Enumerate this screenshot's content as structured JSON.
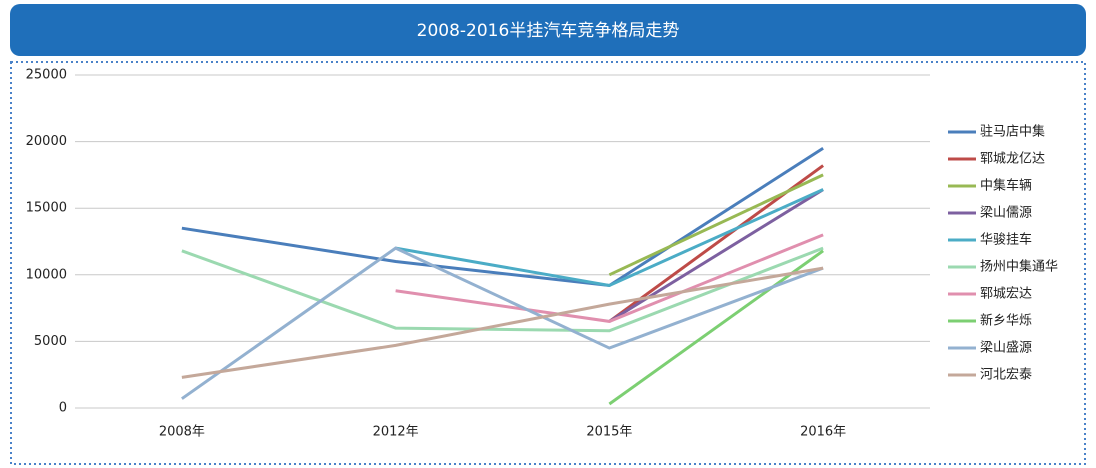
{
  "chart_data": {
    "type": "line",
    "title": "2008-2016半挂汽车竞争格局走势",
    "categories": [
      "2008年",
      "2012年",
      "2015年",
      "2016年"
    ],
    "ylim": [
      0,
      25000
    ],
    "yticks": [
      0,
      5000,
      10000,
      15000,
      20000,
      25000
    ],
    "grid": true,
    "series": [
      {
        "name": "驻马店中集",
        "color": "#4a7ebb",
        "values": [
          13500,
          11000,
          9200,
          19500
        ]
      },
      {
        "name": "郓城龙亿达",
        "color": "#be4b48",
        "values": [
          null,
          null,
          6500,
          18200
        ]
      },
      {
        "name": "中集车辆",
        "color": "#98b954",
        "values": [
          null,
          null,
          10000,
          17500
        ]
      },
      {
        "name": "梁山儒源",
        "color": "#7d60a0",
        "values": [
          null,
          null,
          6500,
          16400
        ]
      },
      {
        "name": "华骏挂车",
        "color": "#4bacc6",
        "values": [
          null,
          12000,
          9200,
          16400
        ]
      },
      {
        "name": "扬州中集通华",
        "color": "#9bd9b0",
        "values": [
          11800,
          6000,
          5800,
          12000
        ]
      },
      {
        "name": "郓城宏达",
        "color": "#e08fae",
        "values": [
          null,
          8800,
          6500,
          13000
        ]
      },
      {
        "name": "新乡华烁",
        "color": "#7ccf72",
        "values": [
          null,
          null,
          300,
          11800
        ]
      },
      {
        "name": "梁山盛源",
        "color": "#93b1d0",
        "values": [
          700,
          12000,
          4500,
          10500
        ]
      },
      {
        "name": "河北宏泰",
        "color": "#c4a89a",
        "values": [
          2300,
          4700,
          7800,
          10500
        ]
      }
    ]
  }
}
